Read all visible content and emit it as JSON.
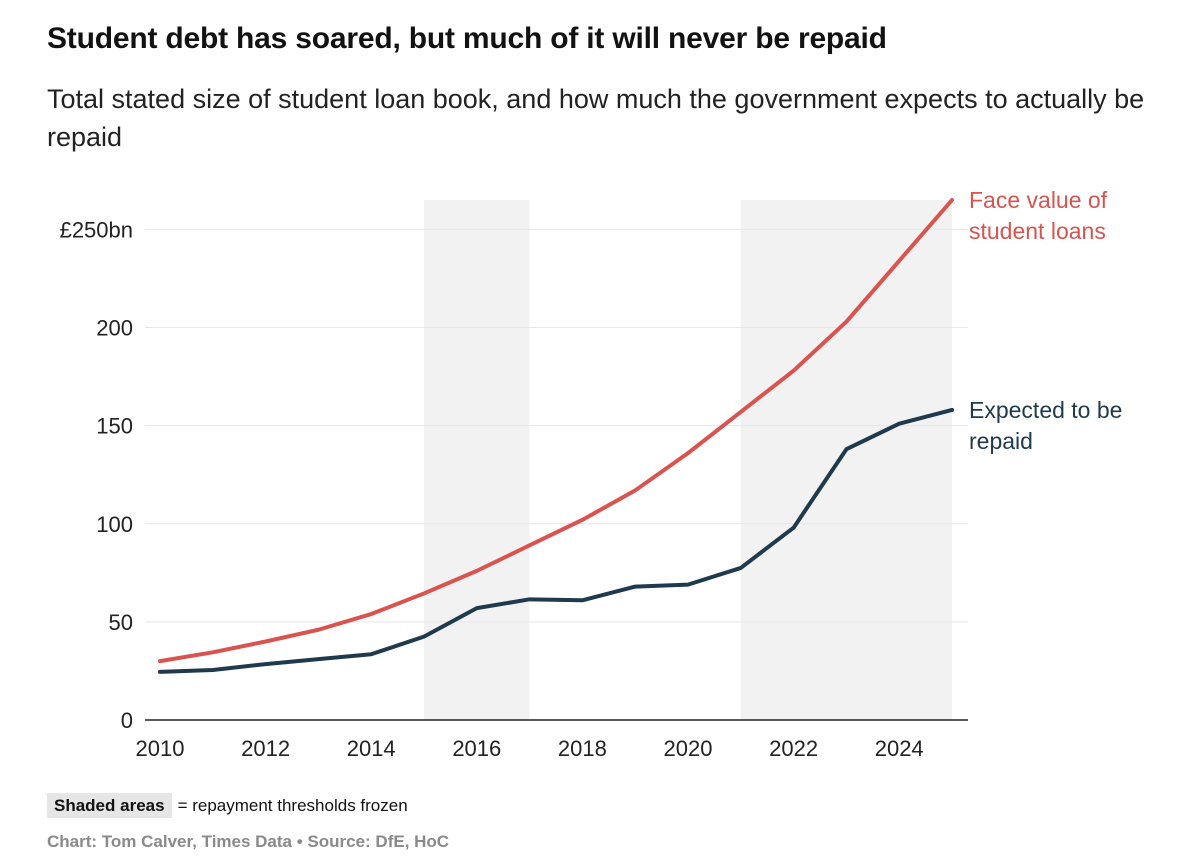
{
  "title": "Student debt has soared, but much of it will never be repaid",
  "subtitle": "Total stated size of student loan book, and how much the government expects to actually be repaid",
  "footer": {
    "shaded_label": "Shaded areas",
    "shaded_text": "= repayment thresholds frozen",
    "credit": "Chart: Tom Calver, Times Data • Source: DfE, HoC"
  },
  "colors": {
    "face_value": "#d9534f",
    "expected": "#1f3a4d",
    "shade": "#f2f2f2",
    "grid": "#e6e6e6",
    "axis": "#222222"
  },
  "chart_data": {
    "type": "line",
    "x": [
      2010,
      2011,
      2012,
      2013,
      2014,
      2015,
      2016,
      2017,
      2018,
      2019,
      2020,
      2021,
      2022,
      2023,
      2024,
      2025
    ],
    "series": [
      {
        "name": "Face value of student loans",
        "values": [
          30,
          34.5,
          40,
          46,
          54,
          64.5,
          76,
          89,
          102,
          117,
          136,
          157,
          178,
          203,
          234,
          265
        ]
      },
      {
        "name": "Expected to be repaid",
        "values": [
          24.5,
          25.5,
          28.5,
          31,
          33.5,
          42.5,
          57,
          61.5,
          61,
          68,
          69,
          77.5,
          98,
          138,
          151,
          158
        ]
      }
    ],
    "series_labels": [
      [
        "Face value of",
        "student loans"
      ],
      [
        "Expected to be",
        "repaid"
      ]
    ],
    "shaded_ranges": [
      [
        2015,
        2017
      ],
      [
        2021,
        2025
      ]
    ],
    "ylim": [
      0,
      265
    ],
    "xlim": [
      2010,
      2025
    ],
    "yticks": [
      0,
      50,
      100,
      150,
      200,
      250
    ],
    "ytick_labels": [
      "0",
      "50",
      "100",
      "150",
      "200",
      "£250bn"
    ],
    "xticks": [
      2010,
      2012,
      2014,
      2016,
      2018,
      2020,
      2022,
      2024
    ],
    "xtick_labels": [
      "2010",
      "2012",
      "2014",
      "2016",
      "2018",
      "2020",
      "2022",
      "2024"
    ],
    "grid": true
  }
}
